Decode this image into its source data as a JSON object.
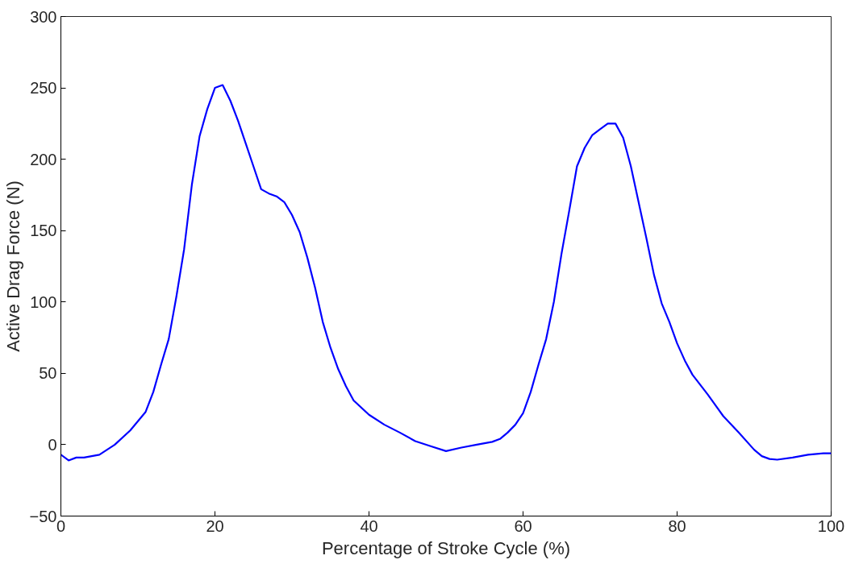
{
  "chart_data": {
    "type": "line",
    "xlabel": "Percentage of Stroke Cycle (%)",
    "ylabel": "Active Drag Force (N)",
    "x": [
      0,
      1,
      2,
      3,
      5,
      7,
      9,
      11,
      12,
      13,
      14,
      15,
      16,
      17,
      18,
      19,
      20,
      21,
      22,
      23,
      24,
      25,
      26,
      27,
      28,
      29,
      30,
      31,
      32,
      33,
      34,
      35,
      36,
      37,
      38,
      40,
      42,
      44,
      46,
      48,
      50,
      52,
      54,
      56,
      57,
      58,
      59,
      60,
      61,
      62,
      63,
      64,
      65,
      66,
      67,
      68,
      69,
      70,
      71,
      72,
      73,
      74,
      75,
      76,
      77,
      78,
      79,
      80,
      81,
      82,
      84,
      86,
      88,
      90,
      91,
      92,
      93,
      95,
      97,
      99,
      100
    ],
    "series": [
      {
        "color": "#0000ff",
        "values": [
          -7,
          -11,
          -9,
          -9,
          -7,
          0,
          10,
          23,
          37,
          56,
          74,
          104,
          137,
          182,
          216,
          235,
          250,
          252,
          241,
          227,
          211,
          195,
          179,
          176,
          174,
          170,
          161,
          149,
          131,
          110,
          86,
          68,
          53,
          41,
          31,
          21,
          14,
          8.5,
          2.5,
          -1,
          -4.5,
          -2,
          0,
          2,
          4,
          8.5,
          14,
          22,
          37,
          56,
          74,
          100,
          134,
          164,
          195,
          208,
          217,
          221,
          225,
          225,
          215,
          195,
          170,
          145,
          119,
          99,
          86,
          71,
          59,
          49,
          35,
          20,
          8.5,
          -3.5,
          -8,
          -10,
          -10.5,
          -9,
          -7,
          -6,
          -6
        ]
      }
    ],
    "xlim": [
      0,
      100
    ],
    "xticks": [
      0,
      20,
      40,
      60,
      80,
      100
    ],
    "ylim": [
      -50,
      300
    ],
    "yticks": [
      -50,
      0,
      50,
      100,
      150,
      200,
      250,
      300
    ],
    "grid": false,
    "line_style": "solid"
  }
}
